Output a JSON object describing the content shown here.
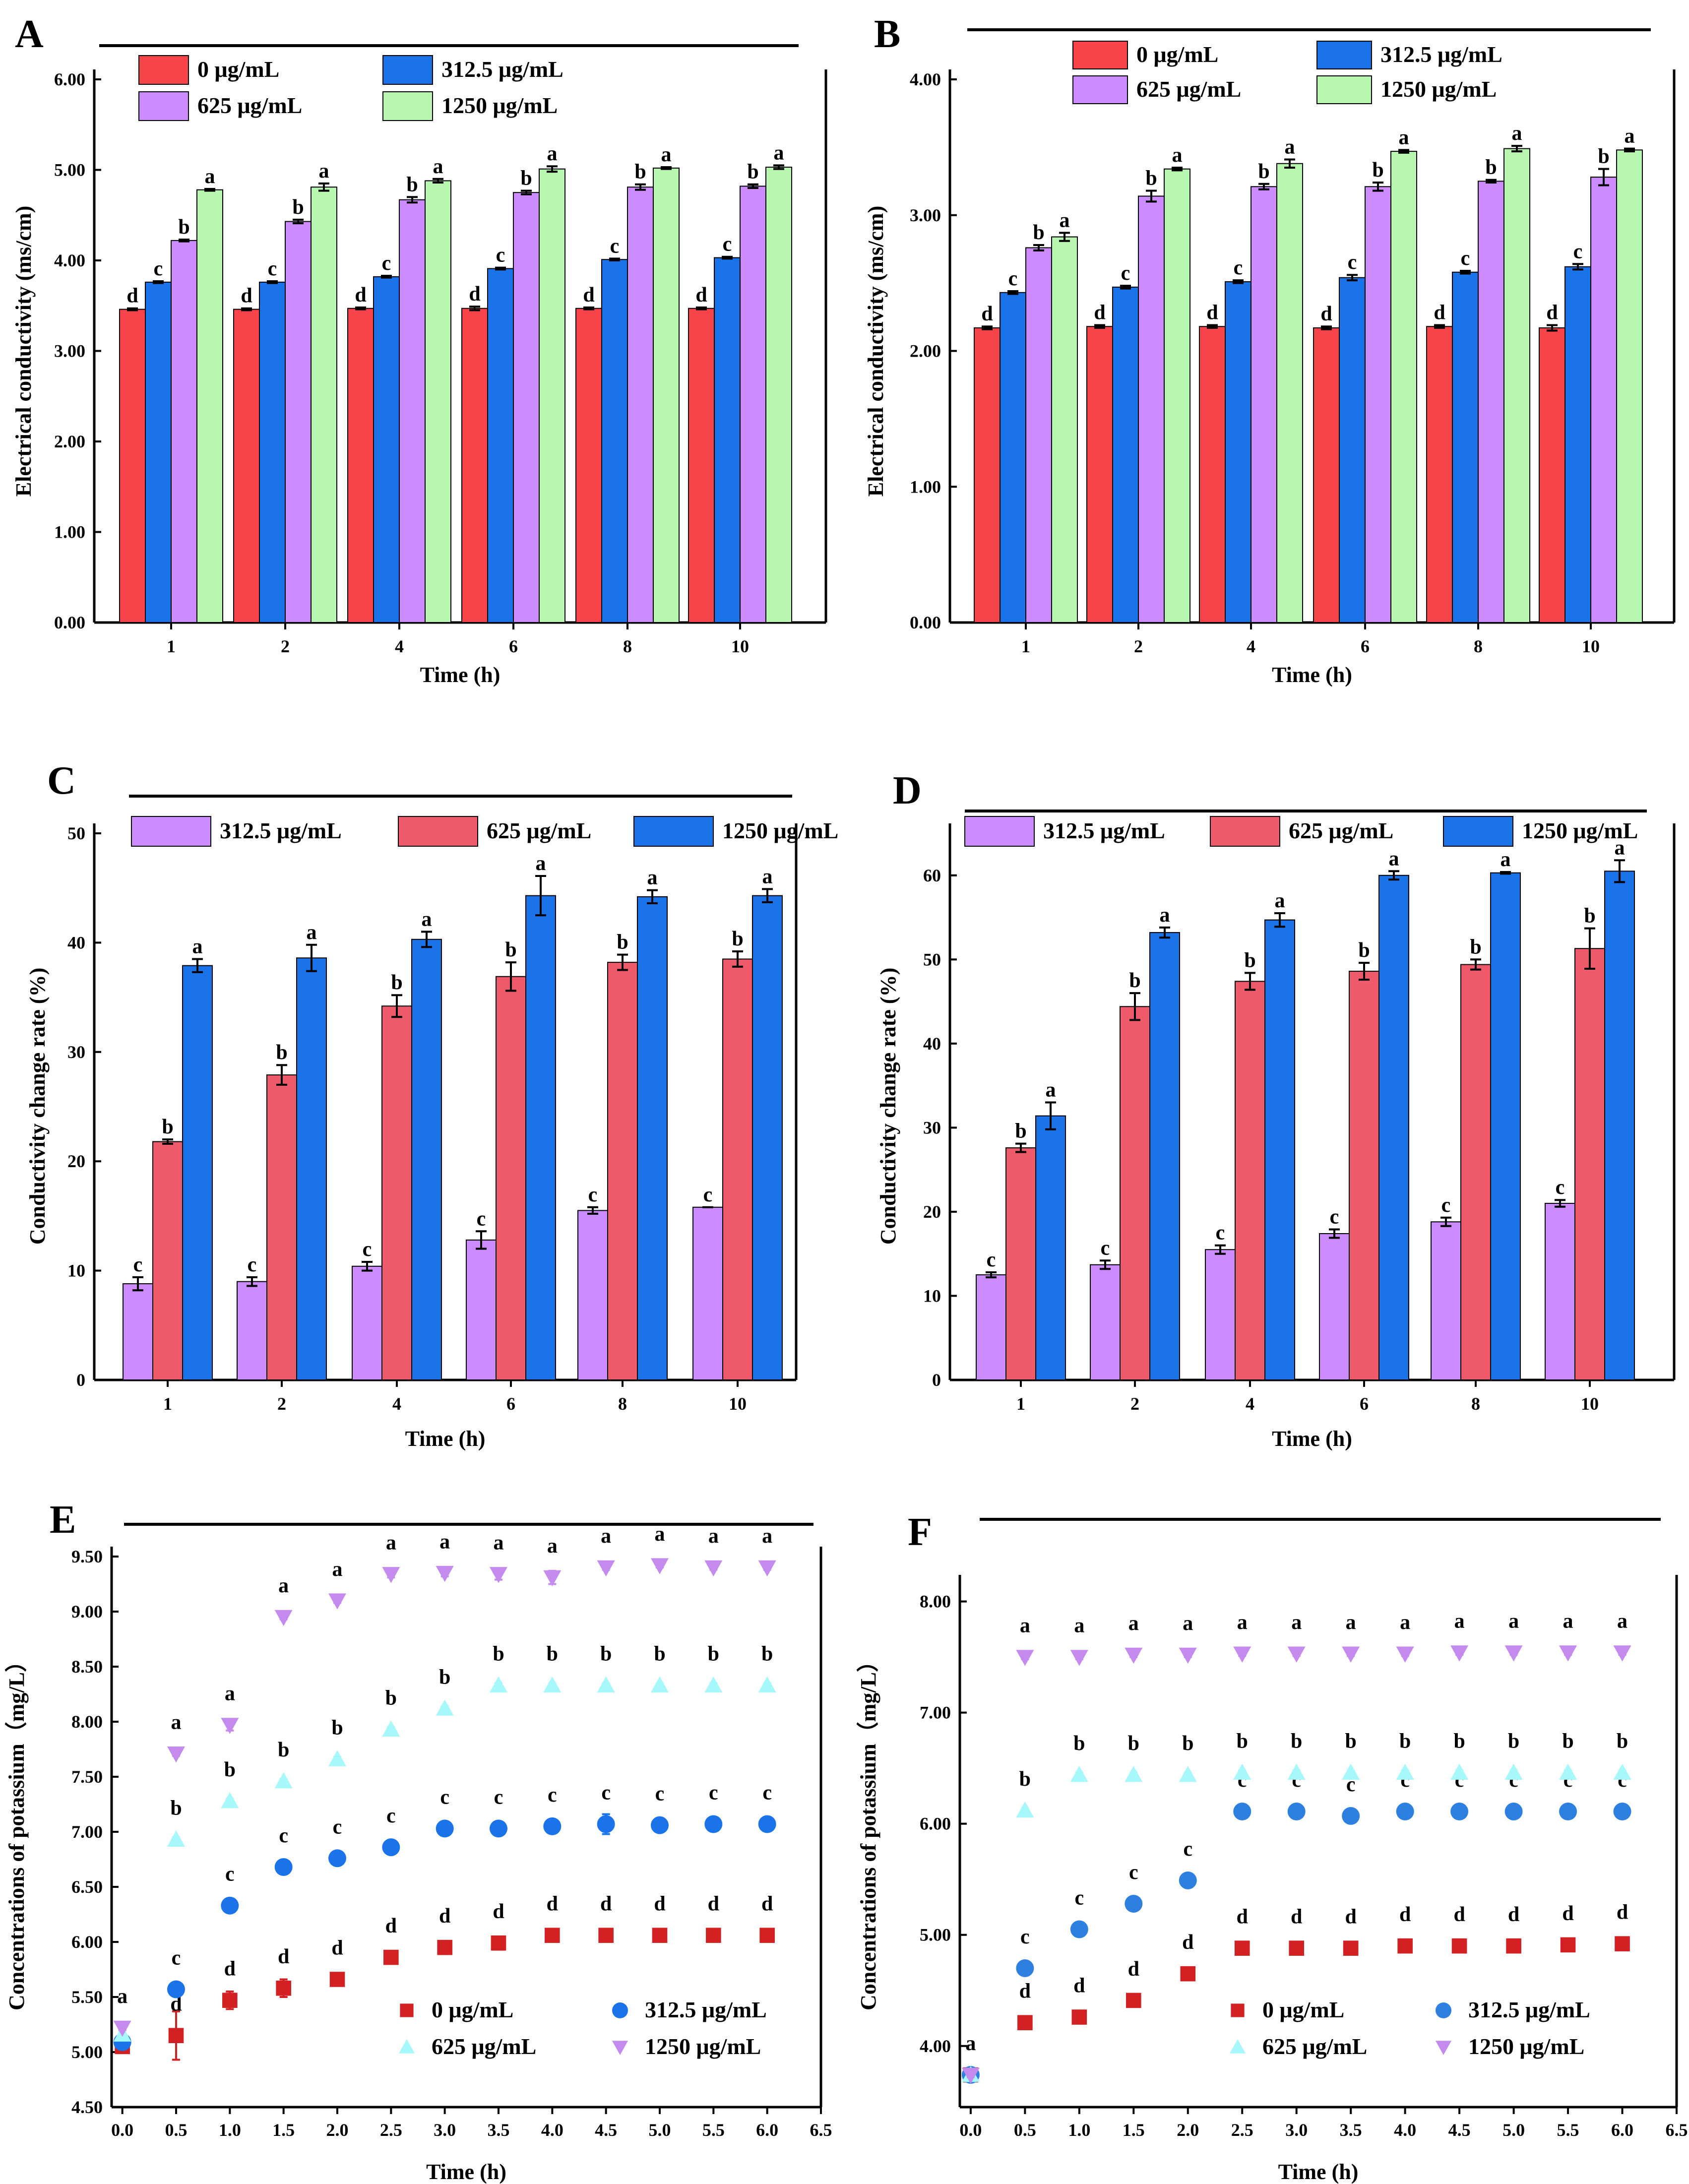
{
  "colors": {
    "red": "#f7444b",
    "blue": "#1a73e8",
    "purple": "#cc8cff",
    "green": "#b8f7b0",
    "pink": "#ef5a6a",
    "cyan": "#a6f8fb",
    "dark_red": "#d32023",
    "lavender": "#c48aee",
    "cyan_blue": "#2d7fe0"
  },
  "chart_data": [
    {
      "id": "A",
      "panel_label": "A",
      "type": "bar",
      "ylabel": "Electrical conductivity (ms/cm)",
      "xlabel": "Time (h)",
      "ylim": [
        0,
        6
      ],
      "yticks": [
        0,
        1,
        2,
        3,
        4,
        5,
        6
      ],
      "ytick_labels": [
        "0.00",
        "1.00",
        "2.00",
        "3.00",
        "4.00",
        "5.00",
        "6.00"
      ],
      "categories": [
        "1",
        "2",
        "4",
        "6",
        "8",
        "10"
      ],
      "series": [
        {
          "name": "0 μg/mL",
          "color": "red",
          "values": [
            3.46,
            3.46,
            3.47,
            3.47,
            3.47,
            3.47
          ],
          "errors": [
            0.01,
            0.01,
            0.01,
            0.02,
            0.01,
            0.01
          ],
          "letters": [
            "d",
            "d",
            "d",
            "d",
            "d",
            "d"
          ]
        },
        {
          "name": "312.5 μg/mL",
          "color": "blue",
          "values": [
            3.76,
            3.76,
            3.82,
            3.91,
            4.01,
            4.03
          ],
          "errors": [
            0.01,
            0.01,
            0.01,
            0.01,
            0.01,
            0.01
          ],
          "letters": [
            "c",
            "c",
            "c",
            "c",
            "c",
            "c"
          ]
        },
        {
          "name": "625 μg/mL",
          "color": "purple",
          "values": [
            4.22,
            4.43,
            4.67,
            4.75,
            4.81,
            4.82
          ],
          "errors": [
            0.01,
            0.02,
            0.03,
            0.02,
            0.03,
            0.02
          ],
          "letters": [
            "b",
            "b",
            "b",
            "b",
            "b",
            "b"
          ]
        },
        {
          "name": "1250 μg/mL",
          "color": "green",
          "values": [
            4.78,
            4.81,
            4.88,
            5.01,
            5.02,
            5.03
          ],
          "errors": [
            0.01,
            0.04,
            0.02,
            0.03,
            0.01,
            0.02
          ],
          "letters": [
            "a",
            "a",
            "a",
            "a",
            "a",
            "a"
          ]
        }
      ]
    },
    {
      "id": "B",
      "panel_label": "B",
      "type": "bar",
      "ylabel": "Electrical conductivity (ms/cm)",
      "xlabel": "Time (h)",
      "ylim": [
        0,
        4
      ],
      "yticks": [
        0,
        1,
        2,
        3,
        4
      ],
      "ytick_labels": [
        "0.00",
        "1.00",
        "2.00",
        "3.00",
        "4.00"
      ],
      "categories": [
        "1",
        "2",
        "4",
        "6",
        "8",
        "10"
      ],
      "series": [
        {
          "name": "0 μg/mL",
          "color": "red",
          "values": [
            2.17,
            2.18,
            2.18,
            2.17,
            2.18,
            2.17
          ],
          "errors": [
            0.01,
            0.01,
            0.01,
            0.01,
            0.01,
            0.02
          ],
          "letters": [
            "d",
            "d",
            "d",
            "d",
            "d",
            "d"
          ]
        },
        {
          "name": "312.5 μg/mL",
          "color": "blue",
          "values": [
            2.43,
            2.47,
            2.51,
            2.54,
            2.58,
            2.62
          ],
          "errors": [
            0.01,
            0.01,
            0.01,
            0.02,
            0.01,
            0.02
          ],
          "letters": [
            "c",
            "c",
            "c",
            "c",
            "c",
            "c"
          ]
        },
        {
          "name": "625 μg/mL",
          "color": "purple",
          "values": [
            2.76,
            3.14,
            3.21,
            3.21,
            3.25,
            3.28
          ],
          "errors": [
            0.02,
            0.04,
            0.02,
            0.03,
            0.01,
            0.06
          ],
          "letters": [
            "b",
            "b",
            "b",
            "b",
            "b",
            "b"
          ]
        },
        {
          "name": "1250 μg/mL",
          "color": "green",
          "values": [
            2.84,
            3.34,
            3.38,
            3.47,
            3.49,
            3.48
          ],
          "errors": [
            0.03,
            0.01,
            0.03,
            0.01,
            0.02,
            0.01
          ],
          "letters": [
            "a",
            "a",
            "a",
            "a",
            "a",
            "a"
          ]
        }
      ]
    },
    {
      "id": "C",
      "panel_label": "C",
      "type": "bar",
      "ylabel": "Conductivity change rate (%)",
      "xlabel": "Time (h)",
      "ylim": [
        0,
        50
      ],
      "yticks": [
        0,
        10,
        20,
        30,
        40,
        50
      ],
      "ytick_labels": [
        "0",
        "10",
        "20",
        "30",
        "40",
        "50"
      ],
      "categories": [
        "1",
        "2",
        "4",
        "6",
        "8",
        "10"
      ],
      "series": [
        {
          "name": "312.5 μg/mL",
          "color": "purple",
          "values": [
            8.8,
            9.0,
            10.4,
            12.8,
            15.5,
            15.8
          ],
          "errors": [
            0.6,
            0.4,
            0.4,
            0.8,
            0.3,
            0.0
          ],
          "letters": [
            "c",
            "c",
            "c",
            "c",
            "c",
            "c"
          ]
        },
        {
          "name": "625 μg/mL",
          "color": "pink",
          "values": [
            21.8,
            27.9,
            34.2,
            36.9,
            38.2,
            38.5
          ],
          "errors": [
            0.2,
            0.9,
            1.0,
            1.3,
            0.7,
            0.7
          ],
          "letters": [
            "b",
            "b",
            "b",
            "b",
            "b",
            "b"
          ]
        },
        {
          "name": "1250 μg/mL",
          "color": "blue",
          "values": [
            37.9,
            38.6,
            40.3,
            44.3,
            44.2,
            44.3
          ],
          "errors": [
            0.6,
            1.2,
            0.7,
            1.8,
            0.6,
            0.6
          ],
          "letters": [
            "a",
            "a",
            "a",
            "a",
            "a",
            "a"
          ]
        }
      ]
    },
    {
      "id": "D",
      "panel_label": "D",
      "type": "bar",
      "ylabel": "Conductivity change rate (%)",
      "xlabel": "Time (h)",
      "ylim": [
        0,
        65
      ],
      "yticks": [
        0,
        10,
        20,
        30,
        40,
        50,
        60
      ],
      "ytick_labels": [
        "0",
        "10",
        "20",
        "30",
        "40",
        "50",
        "60"
      ],
      "categories": [
        "1",
        "2",
        "4",
        "6",
        "8",
        "10"
      ],
      "series": [
        {
          "name": "312.5 μg/mL",
          "color": "purple",
          "values": [
            12.5,
            13.7,
            15.5,
            17.4,
            18.8,
            21.0
          ],
          "errors": [
            0.3,
            0.5,
            0.5,
            0.5,
            0.5,
            0.4
          ],
          "letters": [
            "c",
            "c",
            "c",
            "c",
            "c",
            "c"
          ]
        },
        {
          "name": "625 μg/mL",
          "color": "pink",
          "values": [
            27.6,
            44.4,
            47.4,
            48.6,
            49.4,
            51.3
          ],
          "errors": [
            0.5,
            1.6,
            1.0,
            1.0,
            0.6,
            2.4
          ],
          "letters": [
            "b",
            "b",
            "b",
            "b",
            "b",
            "b"
          ]
        },
        {
          "name": "1250 μg/mL",
          "color": "blue",
          "values": [
            31.4,
            53.2,
            54.7,
            60.0,
            60.3,
            60.5
          ],
          "errors": [
            1.6,
            0.6,
            0.8,
            0.5,
            0.1,
            1.3
          ],
          "letters": [
            "a",
            "a",
            "a",
            "a",
            "a",
            "a"
          ]
        }
      ]
    },
    {
      "id": "E",
      "panel_label": "E",
      "type": "scatter",
      "ylabel": "Concentrations of potassium（mg/L）",
      "xlabel": "Time (h)",
      "xlim": [
        -0.1,
        6.5
      ],
      "ylim": [
        4.5,
        9.5
      ],
      "xticks": [
        0,
        0.5,
        1,
        1.5,
        2,
        2.5,
        3,
        3.5,
        4,
        4.5,
        5,
        5.5,
        6,
        6.5
      ],
      "xtick_labels": [
        "0.0",
        "0.5",
        "1.0",
        "1.5",
        "2.0",
        "2.5",
        "3.0",
        "3.5",
        "4.0",
        "4.5",
        "5.0",
        "5.5",
        "6.0",
        "6.5"
      ],
      "yticks": [
        4.5,
        5,
        5.5,
        6,
        6.5,
        7,
        7.5,
        8,
        8.5,
        9,
        9.5
      ],
      "ytick_labels": [
        "4.50",
        "5.00",
        "5.50",
        "6.00",
        "6.50",
        "7.00",
        "7.50",
        "8.00",
        "8.50",
        "9.00",
        "9.50"
      ],
      "x": [
        0,
        0.5,
        1,
        1.5,
        2,
        2.5,
        3,
        3.5,
        4,
        4.5,
        5,
        5.5,
        6
      ],
      "series": [
        {
          "name": "0 μg/mL",
          "marker": "square",
          "color": "dark_red",
          "values": [
            5.05,
            5.15,
            5.47,
            5.58,
            5.66,
            5.86,
            5.95,
            5.99,
            6.06,
            6.06,
            6.06,
            6.06,
            6.06
          ],
          "errors": [
            0.04,
            0.22,
            0.08,
            0.08,
            0.02,
            0.02,
            0.02,
            0.02,
            0.02,
            0.02,
            0.02,
            0.02,
            0.02
          ],
          "letters": [
            "",
            "d",
            "d",
            "d",
            "d",
            "d",
            "d",
            "d",
            "d",
            "d",
            "d",
            "d",
            "d"
          ]
        },
        {
          "name": "312.5 μg/mL",
          "marker": "circle",
          "color": "blue",
          "values": [
            5.09,
            5.57,
            6.33,
            6.68,
            6.76,
            6.86,
            7.03,
            7.03,
            7.05,
            7.07,
            7.06,
            7.07,
            7.07
          ],
          "errors": [
            0.02,
            0.02,
            0.03,
            0.02,
            0.02,
            0.02,
            0.02,
            0.02,
            0.03,
            0.09,
            0.02,
            0.02,
            0.02
          ],
          "letters": [
            "",
            "c",
            "c",
            "c",
            "c",
            "c",
            "c",
            "c",
            "c",
            "c",
            "c",
            "c",
            "c"
          ]
        },
        {
          "name": "625 μg/mL",
          "marker": "triangle-up",
          "color": "cyan",
          "values": [
            5.16,
            6.93,
            7.28,
            7.46,
            7.66,
            7.93,
            8.12,
            8.33,
            8.33,
            8.33,
            8.33,
            8.33,
            8.33
          ],
          "errors": [
            0.02,
            0.02,
            0.02,
            0.02,
            0.02,
            0.02,
            0.02,
            0.02,
            0.02,
            0.02,
            0.02,
            0.02,
            0.02
          ],
          "letters": [
            "",
            "b",
            "b",
            "b",
            "b",
            "b",
            "b",
            "b",
            "b",
            "b",
            "b",
            "b",
            "b"
          ]
        },
        {
          "name": "1250 μg/mL",
          "marker": "triangle-down",
          "color": "lavender",
          "values": [
            5.22,
            7.71,
            7.97,
            8.95,
            9.1,
            9.34,
            9.35,
            9.34,
            9.31,
            9.4,
            9.42,
            9.4,
            9.4
          ],
          "errors": [
            0.02,
            0.02,
            0.05,
            0.02,
            0.02,
            0.03,
            0.03,
            0.05,
            0.06,
            0.02,
            0.02,
            0.02,
            0.02
          ],
          "letters": [
            "a",
            "a",
            "a",
            "a",
            "a",
            "a",
            "a",
            "a",
            "a",
            "a",
            "a",
            "a",
            "a"
          ]
        }
      ]
    },
    {
      "id": "F",
      "panel_label": "F",
      "type": "scatter",
      "ylabel": "Concentrations of potassium（mg/L）",
      "xlabel": "Time (h)",
      "xlim": [
        -0.1,
        6.5
      ],
      "ylim": [
        3.45,
        8.15
      ],
      "xticks": [
        0,
        0.5,
        1,
        1.5,
        2,
        2.5,
        3,
        3.5,
        4,
        4.5,
        5,
        5.5,
        6,
        6.5
      ],
      "xtick_labels": [
        "0.0",
        "0.5",
        "1.0",
        "1.5",
        "2.0",
        "2.5",
        "3.0",
        "3.5",
        "4.0",
        "4.5",
        "5.0",
        "5.5",
        "6.0",
        "6.5"
      ],
      "yticks": [
        4,
        5,
        6,
        7,
        8
      ],
      "ytick_labels": [
        "4.00",
        "5.00",
        "6.00",
        "7.00",
        "8.00"
      ],
      "x": [
        0,
        0.5,
        1,
        1.5,
        2,
        2.5,
        3,
        3.5,
        4,
        4.5,
        5,
        5.5,
        6
      ],
      "series": [
        {
          "name": "0 μg/mL",
          "marker": "square",
          "color": "dark_red",
          "values": [
            3.74,
            4.21,
            4.26,
            4.41,
            4.65,
            4.88,
            4.88,
            4.88,
            4.9,
            4.9,
            4.9,
            4.91,
            4.92
          ],
          "errors": [
            0.02,
            0.02,
            0.02,
            0.02,
            0.02,
            0.02,
            0.02,
            0.02,
            0.02,
            0.02,
            0.02,
            0.02,
            0.02
          ],
          "letters": [
            "",
            "d",
            "d",
            "d",
            "d",
            "d",
            "d",
            "d",
            "d",
            "d",
            "d",
            "d",
            "d"
          ]
        },
        {
          "name": "312.5 μg/mL",
          "marker": "circle",
          "color": "cyan_blue",
          "values": [
            3.74,
            4.7,
            5.05,
            5.28,
            5.49,
            6.11,
            6.11,
            6.07,
            6.11,
            6.11,
            6.11,
            6.11,
            6.11
          ],
          "errors": [
            0.02,
            0.02,
            0.02,
            0.02,
            0.02,
            0.02,
            0.02,
            0.05,
            0.02,
            0.02,
            0.02,
            0.02,
            0.02
          ],
          "letters": [
            "",
            "c",
            "c",
            "c",
            "c",
            "c",
            "c",
            "c",
            "c",
            "c",
            "c",
            "c",
            "c"
          ]
        },
        {
          "name": "625 μg/mL",
          "marker": "triangle-up",
          "color": "cyan",
          "values": [
            3.74,
            6.12,
            6.44,
            6.44,
            6.44,
            6.46,
            6.46,
            6.46,
            6.46,
            6.46,
            6.46,
            6.46,
            6.46
          ],
          "errors": [
            0.02,
            0.02,
            0.02,
            0.02,
            0.02,
            0.02,
            0.02,
            0.02,
            0.02,
            0.02,
            0.02,
            0.02,
            0.02
          ],
          "letters": [
            "",
            "b",
            "b",
            "b",
            "b",
            "b",
            "b",
            "b",
            "b",
            "b",
            "b",
            "b",
            "b"
          ]
        },
        {
          "name": "1250 μg/mL",
          "marker": "triangle-down",
          "color": "lavender",
          "values": [
            3.74,
            7.5,
            7.5,
            7.52,
            7.52,
            7.53,
            7.53,
            7.53,
            7.53,
            7.54,
            7.54,
            7.54,
            7.54
          ],
          "errors": [
            0.02,
            0.02,
            0.02,
            0.02,
            0.02,
            0.02,
            0.02,
            0.02,
            0.02,
            0.02,
            0.02,
            0.02,
            0.02
          ],
          "letters": [
            "a",
            "a",
            "a",
            "a",
            "a",
            "a",
            "a",
            "a",
            "a",
            "a",
            "a",
            "a",
            "a"
          ]
        }
      ]
    }
  ]
}
